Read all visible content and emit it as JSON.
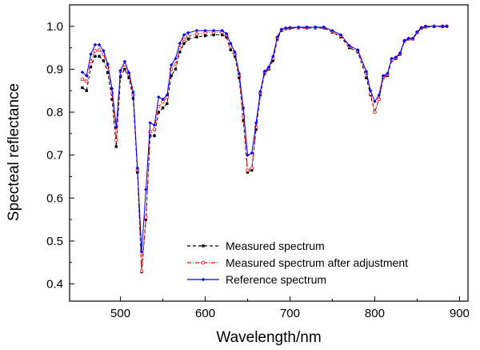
{
  "chart_data": {
    "type": "line",
    "title": "",
    "xlabel": "Wavelength/nm",
    "ylabel": "Specteal reflectance",
    "xlim": [
      440,
      910
    ],
    "ylim": [
      0.36,
      1.05
    ],
    "xticks": [
      500,
      600,
      700,
      800,
      900
    ],
    "yticks": [
      0.4,
      0.5,
      0.6,
      0.7,
      0.8,
      0.9,
      1.0
    ],
    "grid": false,
    "legend_position": "bottom-center",
    "x": [
      455,
      460,
      465,
      470,
      475,
      480,
      485,
      490,
      495,
      500,
      505,
      510,
      515,
      520,
      525,
      530,
      535,
      540,
      545,
      550,
      555,
      560,
      565,
      570,
      575,
      580,
      590,
      600,
      610,
      620,
      625,
      630,
      635,
      640,
      645,
      650,
      655,
      660,
      665,
      670,
      675,
      680,
      685,
      690,
      695,
      700,
      710,
      720,
      730,
      740,
      750,
      760,
      770,
      780,
      790,
      795,
      800,
      805,
      810,
      815,
      820,
      825,
      830,
      835,
      840,
      845,
      850,
      855,
      860,
      870,
      880,
      885
    ],
    "series": [
      {
        "name": "Measured spectrum",
        "color": "#000000",
        "dash": "4,3",
        "marker": "square",
        "values": [
          0.857,
          0.85,
          0.905,
          0.93,
          0.93,
          0.92,
          0.892,
          0.83,
          0.72,
          0.882,
          0.9,
          0.88,
          0.832,
          0.66,
          0.428,
          0.55,
          0.745,
          0.745,
          0.8,
          0.81,
          0.82,
          0.885,
          0.9,
          0.94,
          0.96,
          0.97,
          0.975,
          0.978,
          0.98,
          0.98,
          0.975,
          0.945,
          0.93,
          0.88,
          0.78,
          0.66,
          0.665,
          0.76,
          0.84,
          0.89,
          0.9,
          0.92,
          0.97,
          0.99,
          0.994,
          0.995,
          0.996,
          0.996,
          0.996,
          0.996,
          0.986,
          0.975,
          0.95,
          0.94,
          0.88,
          0.84,
          0.8,
          0.83,
          0.88,
          0.885,
          0.92,
          0.925,
          0.935,
          0.965,
          0.97,
          0.97,
          0.985,
          0.995,
          0.998,
          0.999,
          0.999,
          1.0
        ]
      },
      {
        "name": "Measured spectrum after adjustment",
        "color": "#ff0000",
        "dash": "5,2,1,2",
        "marker": "circle",
        "values": [
          0.877,
          0.872,
          0.918,
          0.943,
          0.945,
          0.935,
          0.905,
          0.845,
          0.735,
          0.895,
          0.91,
          0.888,
          0.84,
          0.665,
          0.43,
          0.555,
          0.755,
          0.76,
          0.813,
          0.824,
          0.835,
          0.9,
          0.912,
          0.95,
          0.97,
          0.977,
          0.982,
          0.985,
          0.986,
          0.986,
          0.98,
          0.955,
          0.935,
          0.885,
          0.79,
          0.665,
          0.67,
          0.765,
          0.845,
          0.893,
          0.903,
          0.925,
          0.973,
          0.992,
          0.995,
          0.996,
          0.997,
          0.997,
          0.997,
          0.997,
          0.988,
          0.978,
          0.953,
          0.943,
          0.89,
          0.843,
          0.8,
          0.83,
          0.882,
          0.888,
          0.922,
          0.927,
          0.937,
          0.966,
          0.971,
          0.971,
          0.986,
          0.996,
          0.999,
          1.0,
          1.0,
          1.0
        ]
      },
      {
        "name": "Reference spectrum",
        "color": "#0000ff",
        "dash": "",
        "marker": "diamond",
        "values": [
          0.893,
          0.885,
          0.935,
          0.957,
          0.957,
          0.943,
          0.912,
          0.855,
          0.765,
          0.897,
          0.918,
          0.892,
          0.847,
          0.67,
          0.475,
          0.62,
          0.775,
          0.77,
          0.835,
          0.83,
          0.84,
          0.91,
          0.925,
          0.96,
          0.98,
          0.985,
          0.99,
          0.99,
          0.99,
          0.99,
          0.983,
          0.96,
          0.94,
          0.89,
          0.81,
          0.7,
          0.705,
          0.775,
          0.848,
          0.895,
          0.905,
          0.93,
          0.975,
          0.993,
          0.996,
          0.997,
          0.998,
          0.998,
          0.998,
          0.998,
          0.99,
          0.98,
          0.955,
          0.945,
          0.895,
          0.85,
          0.825,
          0.84,
          0.885,
          0.89,
          0.925,
          0.928,
          0.938,
          0.967,
          0.972,
          0.972,
          0.987,
          0.997,
          1.0,
          1.0,
          1.0,
          1.0
        ]
      }
    ]
  }
}
